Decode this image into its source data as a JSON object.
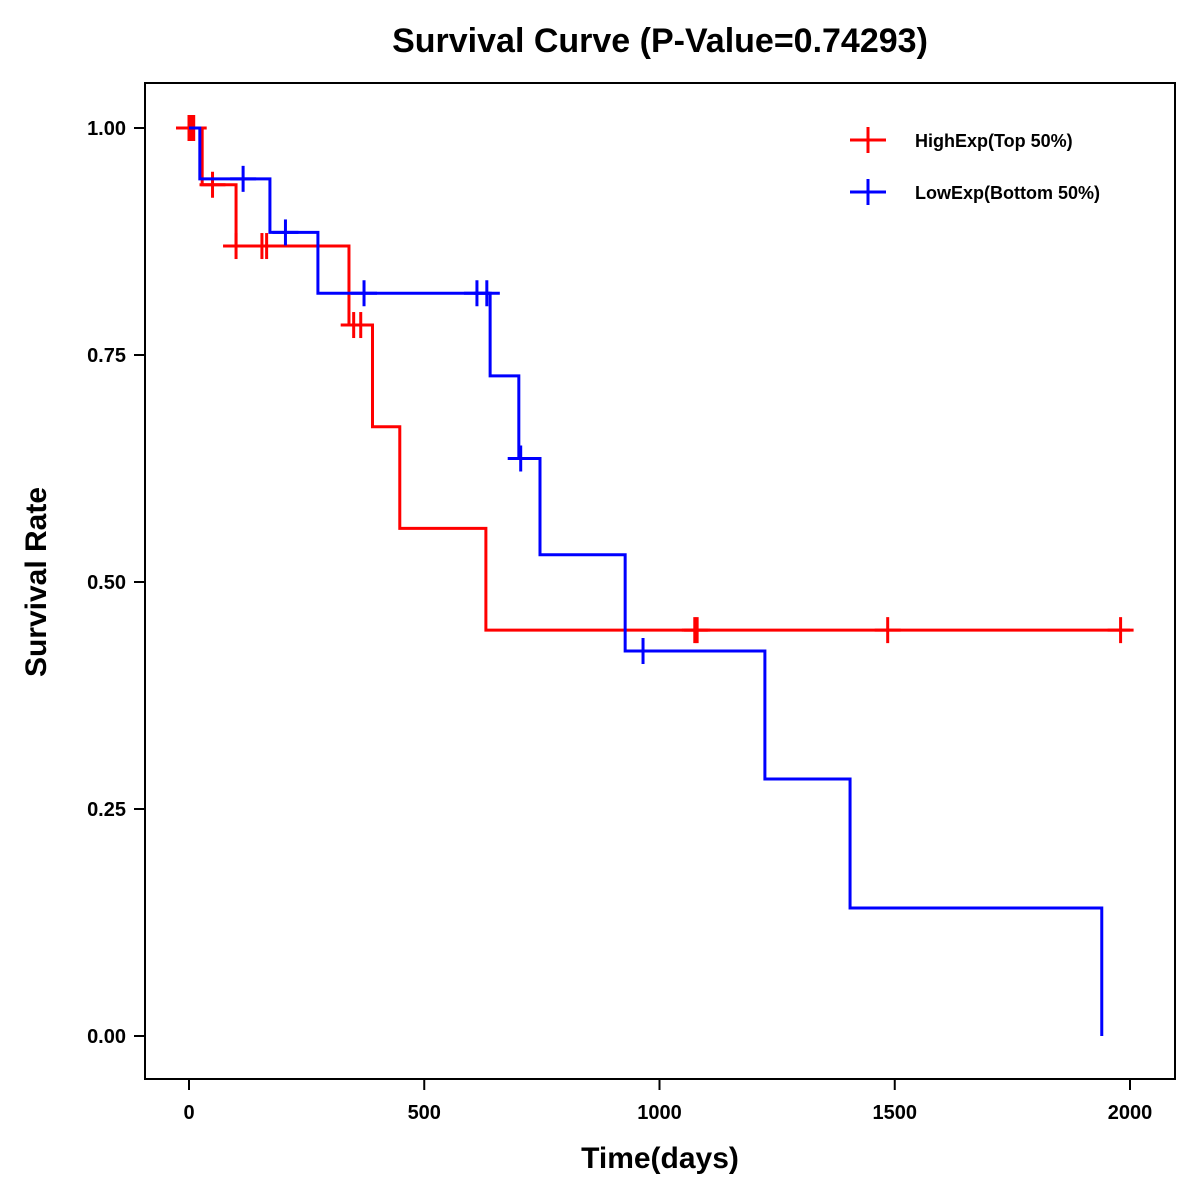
{
  "chart_data": {
    "type": "line",
    "subtype": "kaplan-meier step",
    "title": "Survival Curve (P-Value=0.74293)",
    "xlabel": "Time(days)",
    "ylabel": "Survival Rate",
    "xlim": [
      -90,
      2080
    ],
    "ylim": [
      -0.05,
      1.05
    ],
    "xticks": [
      0,
      500,
      1000,
      1500,
      2000
    ],
    "xtick_labels": [
      "0",
      "500",
      "1000",
      "1500",
      "2000"
    ],
    "yticks": [
      0,
      0.25,
      0.5,
      0.75,
      1.0
    ],
    "ytick_labels": [
      "0.00",
      "0.25",
      "0.50",
      "0.75",
      "1.00"
    ],
    "grid": false,
    "legend_position": "top-right",
    "series": [
      {
        "name": "HighExp(Top 50%)",
        "color": "#FF0000",
        "steps": [
          [
            0,
            1.0
          ],
          [
            28,
            0.9375
          ],
          [
            100,
            0.87
          ],
          [
            340,
            0.783
          ],
          [
            390,
            0.671
          ],
          [
            448,
            0.559
          ],
          [
            631,
            0.447
          ]
        ],
        "end_time": 2000,
        "censored": [
          [
            0,
            1.0
          ],
          [
            5,
            1.0
          ],
          [
            10,
            1.0
          ],
          [
            50,
            0.9375
          ],
          [
            100,
            0.87
          ],
          [
            155,
            0.87
          ],
          [
            165,
            0.87
          ],
          [
            350,
            0.783
          ],
          [
            365,
            0.783
          ],
          [
            1075,
            0.447
          ],
          [
            1080,
            0.447
          ],
          [
            1485,
            0.447
          ],
          [
            1980,
            0.447
          ]
        ]
      },
      {
        "name": "LowExp(Bottom 50%)",
        "color": "#0000FF",
        "steps": [
          [
            0,
            1.0
          ],
          [
            23,
            0.944
          ],
          [
            172,
            0.885
          ],
          [
            274,
            0.818
          ],
          [
            640,
            0.727
          ],
          [
            701,
            0.636
          ],
          [
            746,
            0.53
          ],
          [
            927,
            0.424
          ],
          [
            1224,
            0.283
          ],
          [
            1405,
            0.141
          ],
          [
            1940,
            0.0
          ]
        ],
        "end_time": 1940,
        "censored": [
          [
            115,
            0.944
          ],
          [
            205,
            0.885
          ],
          [
            372,
            0.818
          ],
          [
            612,
            0.818
          ],
          [
            633,
            0.818
          ],
          [
            705,
            0.636
          ],
          [
            965,
            0.424
          ]
        ]
      }
    ]
  }
}
